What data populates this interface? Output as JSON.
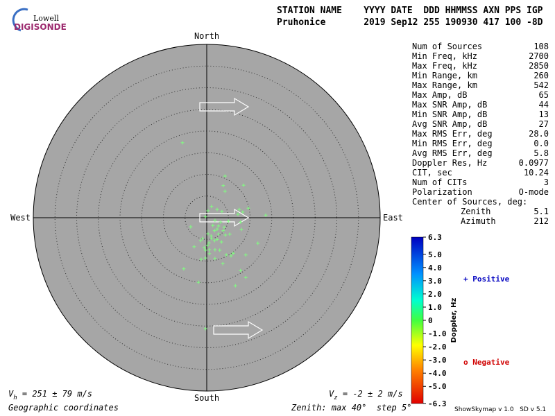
{
  "logo": {
    "top": "Lowell",
    "bottom": "DIGISONDE"
  },
  "header": {
    "labels": "STATION NAME    YYYY DATE  DDD HHMMSS AXN PPS IGP",
    "values": "Pruhonice       2019 Sep12 255 190930 417 100 -8D"
  },
  "stats": [
    [
      "Num of Sources",
      "108"
    ],
    [
      "Min Freq, kHz",
      "2700"
    ],
    [
      "Max Freq, kHz",
      "2850"
    ],
    [
      "Min Range, km",
      "260"
    ],
    [
      "Max Range, km",
      "542"
    ],
    [
      "Max Amp, dB",
      "65"
    ],
    [
      "Max SNR Amp, dB",
      "44"
    ],
    [
      "Min SNR Amp, dB",
      "13"
    ],
    [
      "Avg SNR Amp, dB",
      "27"
    ],
    [
      "Max RMS Err, deg",
      "28.0"
    ],
    [
      "Min RMS Err, deg",
      "0.0"
    ],
    [
      "Avg RMS Err, deg",
      "5.8"
    ],
    [
      "Doppler Res, Hz",
      "0.0977"
    ],
    [
      "CIT, sec",
      "10.24"
    ],
    [
      "Num of CITs",
      "3"
    ],
    [
      "Polarization",
      "O-mode"
    ]
  ],
  "center": {
    "title": "Center of Sources, deg:",
    "rows": [
      [
        "Zenith",
        "5.1"
      ],
      [
        "Azimuth",
        "212"
      ]
    ]
  },
  "chart_data": {
    "type": "skymap",
    "directions": {
      "north": "North",
      "south": "South",
      "east": "East",
      "west": "West"
    },
    "rlim": [
      0,
      40
    ],
    "rticks": [
      5,
      10,
      15,
      20,
      25,
      30,
      35
    ],
    "color": "#80ff80",
    "x": [
      -5.6,
      4.2,
      3.8,
      8.5,
      4.2,
      1.1,
      0.3,
      2.4,
      -0.3,
      3.5,
      7.5,
      7.2,
      8.3,
      9.6,
      1.9,
      3.2,
      5.0,
      7.8,
      -3.7,
      1.4,
      2.4,
      3.8,
      0.3,
      -1.0,
      -2.9,
      1.1,
      2.4,
      3.4,
      0.2,
      0.6,
      -0.3,
      1.9,
      3.0,
      4.5,
      5.6,
      6.1,
      11.8,
      8.0,
      -0.3,
      -1.3,
      1.9,
      3.7,
      -5.3,
      9.0,
      7.8,
      9.0,
      6.6,
      -1.9,
      -0.3,
      13.6,
      1.8,
      0.5,
      1.0,
      2.7,
      4.3,
      5.3,
      -1.4,
      -0.6,
      0.6,
      1.8,
      2.7,
      4.0
    ],
    "y": [
      17.3,
      9.6,
      7.4,
      7.5,
      6.1,
      2.6,
      1.6,
      1.9,
      0.2,
      1.4,
      1.9,
      0.8,
      1.3,
      2.2,
      -0.6,
      -1.0,
      -0.8,
      -1.0,
      -2.1,
      -1.8,
      -2.6,
      -3.0,
      -3.7,
      -4.8,
      -6.7,
      -4.8,
      -5.0,
      -5.6,
      -6.4,
      -7.4,
      -7.5,
      -7.4,
      -7.5,
      -8.6,
      -8.8,
      -8.2,
      -5.9,
      -2.7,
      -9.3,
      -9.6,
      -9.4,
      -10.6,
      -11.8,
      -8.6,
      -12.2,
      -13.8,
      -15.7,
      -14.9,
      -25.6,
      0.6,
      -5.3,
      -5.8,
      -4.2,
      -3.8,
      -4.0,
      -3.8,
      -5.3,
      -6.9,
      -8.3,
      -3.0,
      -1.9,
      -2.2
    ],
    "colorbar": {
      "label": "Doppler, Hz",
      "lim": [
        -6.3,
        6.3
      ],
      "ticks": [
        6.3,
        {
          "value": 5,
          "label": "5.0"
        },
        {
          "value": 4,
          "label": "4.0"
        },
        {
          "value": 3,
          "label": "3.0"
        },
        {
          "value": 2,
          "label": "2.0"
        },
        {
          "value": 1,
          "label": "1.0"
        },
        0,
        {
          "value": -1,
          "label": "-1.0"
        },
        {
          "value": -2,
          "label": "-2.0"
        },
        {
          "value": -3,
          "label": "-3.0"
        },
        {
          "value": -4,
          "label": "-4.0"
        },
        {
          "value": -5,
          "label": "-5.0"
        },
        -6.3
      ]
    },
    "positive": "+ Positive",
    "negative": "o Negative",
    "vh": {
      "symbol": "V",
      "sub": "h",
      "text": " = 251 ± 79 m/s"
    },
    "vz": {
      "symbol": "V",
      "sub": "z",
      "text": " = -2 ± 2 m/s"
    },
    "coords": "Geographic coordinates",
    "zenith": "Zenith: max 40°  step 5°",
    "version": "ShowSkymap v 1.0   SD v 5.1"
  }
}
